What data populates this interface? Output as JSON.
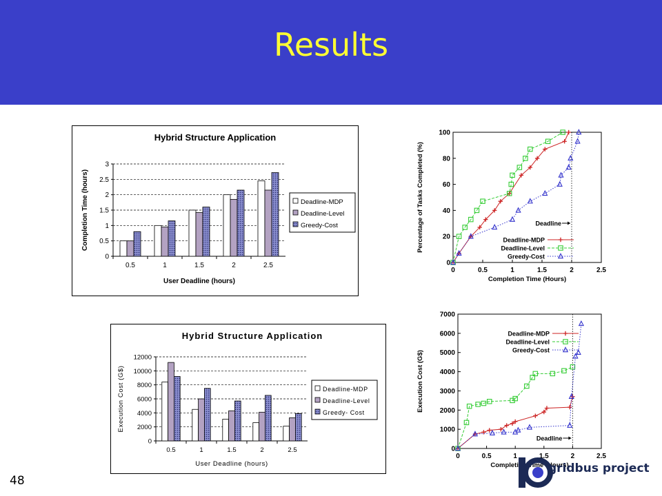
{
  "slide": {
    "title": "Results",
    "page_number": "48",
    "logo_text": "gridbus project",
    "colors": {
      "header_bg": "#3a3fc9",
      "title": "#ffff33"
    }
  },
  "chart_data": [
    {
      "id": "completion-bar",
      "type": "bar",
      "title": "Hybrid Structure Application",
      "xlabel": "User Deadline (hours)",
      "ylabel": "Completion Time (hours)",
      "categories": [
        "0.5",
        "1",
        "1.5",
        "2",
        "2.5"
      ],
      "ylim": [
        0,
        3
      ],
      "yticks": [
        0,
        0.5,
        1,
        1.5,
        2,
        2.5,
        3
      ],
      "ytick_labels": [
        "0",
        "0.5",
        "1",
        "1.5",
        "2",
        "2.5",
        "3"
      ],
      "grid": true,
      "legend_position": "right",
      "series": [
        {
          "name": "Deadline-MDP",
          "values": [
            0.5,
            1.0,
            1.5,
            2.0,
            2.45
          ],
          "color": "#ffffff",
          "pattern": "none"
        },
        {
          "name": "Deadline-Level",
          "values": [
            0.5,
            0.95,
            1.42,
            1.85,
            2.15
          ],
          "color": "#b3a2c2",
          "pattern": "none"
        },
        {
          "name": "Greedy-Cost",
          "values": [
            0.8,
            1.15,
            1.6,
            2.15,
            2.72
          ],
          "color": "#8b8fd0",
          "pattern": "dots"
        }
      ]
    },
    {
      "id": "completion-line",
      "type": "line",
      "xlabel": "Completion Time (Hours)",
      "ylabel": "Percentage of Tasks Completed (%)",
      "xlim": [
        0,
        2.5
      ],
      "ylim": [
        0,
        100
      ],
      "xticks": [
        0,
        0.5,
        1,
        1.5,
        2,
        2.5
      ],
      "xtick_labels": [
        "0",
        "0.5",
        "1",
        "1.5",
        "2",
        "2.5"
      ],
      "yticks": [
        0,
        20,
        40,
        60,
        80,
        100
      ],
      "ytick_labels": [
        "0",
        "20",
        "40",
        "60",
        "80",
        "100"
      ],
      "legend_position": "bottom-right",
      "annotation": {
        "text": "Deadline",
        "x": 2.0
      },
      "series": [
        {
          "name": "Deadline-MDP",
          "color": "#cc2222",
          "marker": "plus",
          "dash": "solid",
          "x": [
            0,
            0.1,
            0.3,
            0.45,
            0.55,
            0.7,
            0.8,
            0.95,
            1.15,
            1.3,
            1.42,
            1.55,
            1.88,
            1.95
          ],
          "y": [
            0,
            7,
            20,
            27,
            33,
            40,
            47,
            53,
            67,
            73,
            80,
            87,
            93,
            100
          ]
        },
        {
          "name": "Deadline-Level",
          "color": "#33cc33",
          "marker": "square",
          "dash": "dashed",
          "x": [
            0,
            0.1,
            0.2,
            0.3,
            0.4,
            0.5,
            0.95,
            0.98,
            1.0,
            1.12,
            1.22,
            1.3,
            1.6,
            1.85
          ],
          "y": [
            0,
            20,
            27,
            33,
            40,
            47,
            53,
            60,
            67,
            73,
            80,
            87,
            93,
            100
          ]
        },
        {
          "name": "Greedy-Cost",
          "color": "#3333cc",
          "marker": "triangle",
          "dash": "dotted",
          "x": [
            0,
            0.1,
            0.3,
            0.7,
            1.0,
            1.1,
            1.3,
            1.55,
            1.8,
            1.82,
            1.95,
            1.98,
            2.1,
            2.12
          ],
          "y": [
            0,
            7,
            20,
            27,
            33,
            40,
            47,
            53,
            60,
            67,
            73,
            80,
            93,
            100
          ]
        }
      ]
    },
    {
      "id": "cost-bar",
      "type": "bar",
      "title": "Hybrid Structure Application",
      "xlabel": "User Deadline (hours)",
      "ylabel": "Execution Cost (G$)",
      "categories": [
        "0.5",
        "1",
        "1.5",
        "2",
        "2.5"
      ],
      "ylim": [
        0,
        12000
      ],
      "yticks": [
        0,
        2000,
        4000,
        6000,
        8000,
        10000,
        12000
      ],
      "ytick_labels": [
        "0",
        "2000",
        "4000",
        "6000",
        "8000",
        "10000",
        "12000"
      ],
      "grid": true,
      "legend_position": "right",
      "series": [
        {
          "name": "Deadline-MDP",
          "values": [
            8400,
            4500,
            3100,
            2600,
            2100
          ],
          "color": "#ffffff",
          "pattern": "none"
        },
        {
          "name": "Deadline-Level",
          "values": [
            11200,
            6000,
            4300,
            4100,
            3300
          ],
          "color": "#b3a2c2",
          "pattern": "none"
        },
        {
          "name": "Greedy- Cost",
          "values": [
            9200,
            7500,
            5700,
            6500,
            3900
          ],
          "color": "#8b8fd0",
          "pattern": "dots"
        }
      ]
    },
    {
      "id": "cost-line",
      "type": "line",
      "xlabel": "Completion Time (Hours)",
      "ylabel": "Execution Cost (G$)",
      "xlim": [
        0,
        2.5
      ],
      "ylim": [
        0,
        7000
      ],
      "xticks": [
        0,
        0.5,
        1,
        1.5,
        2,
        2.5
      ],
      "xtick_labels": [
        "0",
        "0.5",
        "1",
        "1.5",
        "2",
        "2.5"
      ],
      "yticks": [
        0,
        1000,
        2000,
        3000,
        4000,
        5000,
        6000,
        7000
      ],
      "ytick_labels": [
        "0",
        "1000",
        "2000",
        "3000",
        "4000",
        "5000",
        "6000",
        "7000"
      ],
      "legend_position": "top-left",
      "annotation": {
        "text": "Deadline",
        "x": 2.0
      },
      "series": [
        {
          "name": "Deadline-MDP",
          "color": "#cc2222",
          "marker": "plus",
          "dash": "solid",
          "x": [
            0,
            0.3,
            0.45,
            0.55,
            0.75,
            0.85,
            0.95,
            1.0,
            1.35,
            1.5,
            1.55,
            1.95,
            2.0
          ],
          "y": [
            0,
            750,
            850,
            950,
            1000,
            1200,
            1300,
            1400,
            1700,
            1900,
            2100,
            2150,
            2700
          ]
        },
        {
          "name": "Deadline-Level",
          "color": "#33cc33",
          "marker": "square",
          "dash": "dashed",
          "x": [
            0,
            0.15,
            0.2,
            0.35,
            0.45,
            0.55,
            0.95,
            1.0,
            1.2,
            1.3,
            1.35,
            1.65,
            1.85,
            2.0
          ],
          "y": [
            0,
            1350,
            2200,
            2300,
            2350,
            2450,
            2500,
            2600,
            3250,
            3700,
            3900,
            3900,
            4050,
            4250
          ]
        },
        {
          "name": "Greedy-Cost",
          "color": "#3333cc",
          "marker": "triangle",
          "dash": "dotted",
          "x": [
            0,
            0.3,
            0.6,
            0.8,
            1.0,
            1.05,
            1.25,
            1.95,
            1.98,
            2.05,
            2.1,
            2.15
          ],
          "y": [
            0,
            750,
            800,
            850,
            850,
            950,
            1100,
            1200,
            2700,
            4800,
            5000,
            6500
          ]
        }
      ]
    }
  ]
}
